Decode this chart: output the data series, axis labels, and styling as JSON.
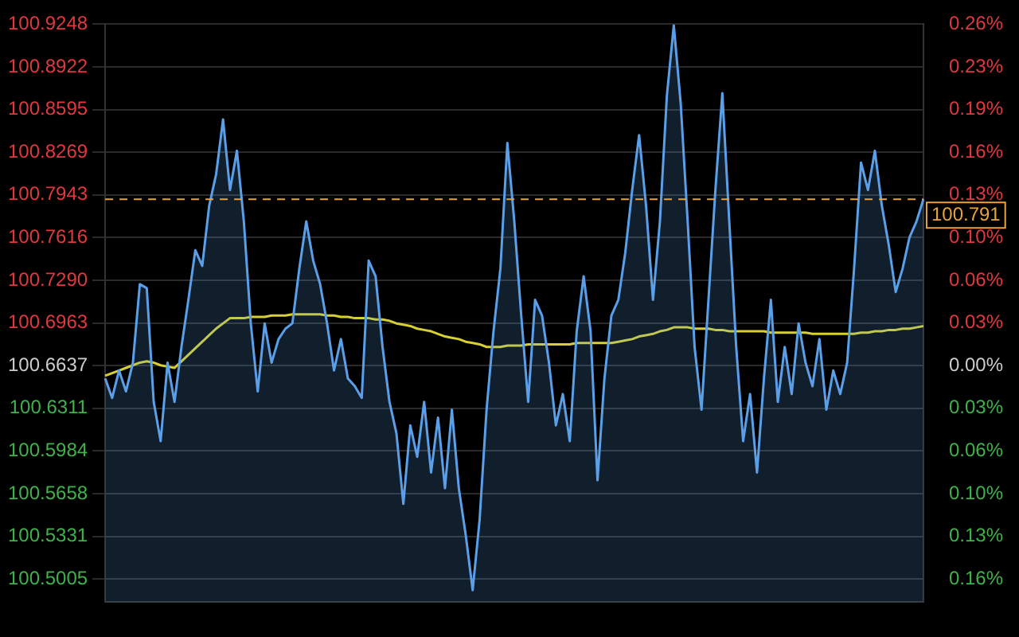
{
  "chart_data": {
    "type": "line",
    "categories": [
      null,
      null,
      null,
      null,
      null,
      null,
      null,
      null,
      null,
      null,
      null,
      null,
      null,
      null,
      null,
      null,
      null,
      null,
      null,
      null,
      null,
      null,
      null,
      null,
      null,
      null,
      null,
      null,
      null,
      null,
      null,
      null,
      null,
      null,
      null,
      null,
      null,
      null,
      null,
      null,
      null,
      null,
      null,
      null,
      null,
      null,
      null,
      null,
      null,
      null,
      null,
      null,
      null,
      null,
      null,
      null,
      null,
      null,
      null,
      null,
      null,
      null,
      null,
      null,
      null,
      null,
      null,
      null,
      null,
      null,
      null,
      null,
      null,
      null,
      null,
      null,
      null,
      null,
      null,
      null,
      null,
      null,
      null,
      null,
      null,
      null,
      null,
      null,
      null,
      null,
      null,
      null,
      null,
      null,
      null,
      null,
      null,
      null,
      null,
      null,
      null,
      null,
      null,
      null,
      null,
      null,
      null,
      null,
      null,
      null,
      null,
      null,
      null,
      null,
      null,
      null,
      null,
      null,
      null
    ],
    "series": [
      {
        "type": "area",
        "color": "#5a9fe8",
        "values": [
          100.654,
          100.639,
          100.66,
          100.644,
          100.666,
          100.726,
          100.723,
          100.636,
          100.606,
          100.666,
          100.636,
          100.678,
          100.714,
          100.752,
          100.74,
          100.786,
          100.81,
          100.852,
          100.798,
          100.828,
          100.774,
          100.696,
          100.644,
          100.696,
          100.666,
          100.684,
          100.692,
          100.696,
          100.738,
          100.774,
          100.744,
          100.726,
          100.696,
          100.66,
          100.684,
          100.654,
          100.648,
          100.639,
          100.744,
          100.732,
          100.678,
          100.636,
          100.612,
          100.558,
          100.618,
          100.594,
          100.636,
          100.582,
          100.624,
          100.57,
          100.63,
          100.57,
          100.534,
          100.492,
          100.546,
          100.63,
          100.69,
          100.738,
          100.834,
          100.774,
          100.702,
          100.636,
          100.714,
          100.702,
          100.666,
          100.618,
          100.642,
          100.606,
          100.69,
          100.732,
          100.69,
          100.576,
          100.654,
          100.702,
          100.714,
          100.75,
          100.798,
          100.84,
          100.786,
          100.714,
          100.774,
          100.87,
          100.924,
          100.864,
          100.774,
          100.678,
          100.63,
          100.714,
          100.798,
          100.872,
          100.774,
          100.678,
          100.606,
          100.642,
          100.582,
          100.654,
          100.714,
          100.636,
          100.678,
          100.642,
          100.696,
          100.666,
          100.648,
          100.684,
          100.63,
          100.66,
          100.642,
          100.666,
          100.738,
          100.819,
          100.798,
          100.828,
          100.786,
          100.756,
          100.72,
          100.738,
          100.762,
          100.774,
          100.791
        ]
      },
      {
        "type": "line",
        "color": "#d8d030",
        "values": [
          100.656,
          100.658,
          100.66,
          100.662,
          100.664,
          100.666,
          100.667,
          100.666,
          100.664,
          100.663,
          100.662,
          100.667,
          100.672,
          100.677,
          100.682,
          100.687,
          100.692,
          100.696,
          100.7,
          100.7,
          100.7,
          100.701,
          100.701,
          100.701,
          100.702,
          100.702,
          100.702,
          100.703,
          100.703,
          100.703,
          100.703,
          100.703,
          100.702,
          100.702,
          100.701,
          100.701,
          100.7,
          100.7,
          100.7,
          100.699,
          100.699,
          100.698,
          100.696,
          100.695,
          100.694,
          100.692,
          100.691,
          100.69,
          100.688,
          100.686,
          100.685,
          100.684,
          100.682,
          100.681,
          100.68,
          100.678,
          100.678,
          100.678,
          100.679,
          100.679,
          100.679,
          100.68,
          100.68,
          100.68,
          100.68,
          100.68,
          100.68,
          100.68,
          100.681,
          100.681,
          100.681,
          100.681,
          100.681,
          100.681,
          100.682,
          100.683,
          100.684,
          100.686,
          100.687,
          100.688,
          100.69,
          100.691,
          100.693,
          100.693,
          100.693,
          100.692,
          100.692,
          100.692,
          100.691,
          100.691,
          100.69,
          100.69,
          100.69,
          100.69,
          100.69,
          100.69,
          100.689,
          100.689,
          100.689,
          100.689,
          100.689,
          100.689,
          100.688,
          100.688,
          100.688,
          100.688,
          100.688,
          100.688,
          100.688,
          100.689,
          100.689,
          100.69,
          100.69,
          100.691,
          100.691,
          100.692,
          100.692,
          100.693,
          100.694
        ]
      }
    ],
    "ylim": [
      100.483,
      100.9248
    ],
    "yticks": [
      100.9248,
      100.8922,
      100.8595,
      100.8269,
      100.7943,
      100.7616,
      {
        "value": 100.729,
        "label": "100.7290"
      },
      100.6963,
      100.6637,
      100.6311,
      100.5984,
      100.5658,
      100.5331,
      100.5005
    ],
    "y2lim": [
      -0.1795,
      0.2594
    ],
    "y2ticks": [
      {
        "value": 0.2594,
        "label": "0.26%"
      },
      {
        "value": 0.227,
        "label": "0.23%"
      },
      {
        "value": 0.1945,
        "label": "0.19%"
      },
      {
        "value": 0.1621,
        "label": "0.16%"
      },
      {
        "value": 0.1297,
        "label": "0.13%"
      },
      {
        "value": 0.0972,
        "label": "0.10%"
      },
      {
        "value": 0.0648,
        "label": "0.06%"
      },
      {
        "value": 0.0324,
        "label": "0.03%"
      },
      {
        "value": 0,
        "label": "0.00%"
      },
      {
        "value": -0.0324,
        "label": "0.03%"
      },
      {
        "value": -0.0648,
        "label": "0.06%"
      },
      {
        "value": -0.0973,
        "label": "0.10%"
      },
      {
        "value": -0.1297,
        "label": "0.13%"
      },
      {
        "value": -0.1621,
        "label": "0.16%"
      }
    ],
    "ref_lines": [
      {
        "axis": "y",
        "value": 100.791,
        "label": "100.791",
        "color": "#e8a33a",
        "line_style": "dashed"
      }
    ],
    "grid": "y",
    "legend": false,
    "marker": "none",
    "line_style": "solid"
  }
}
